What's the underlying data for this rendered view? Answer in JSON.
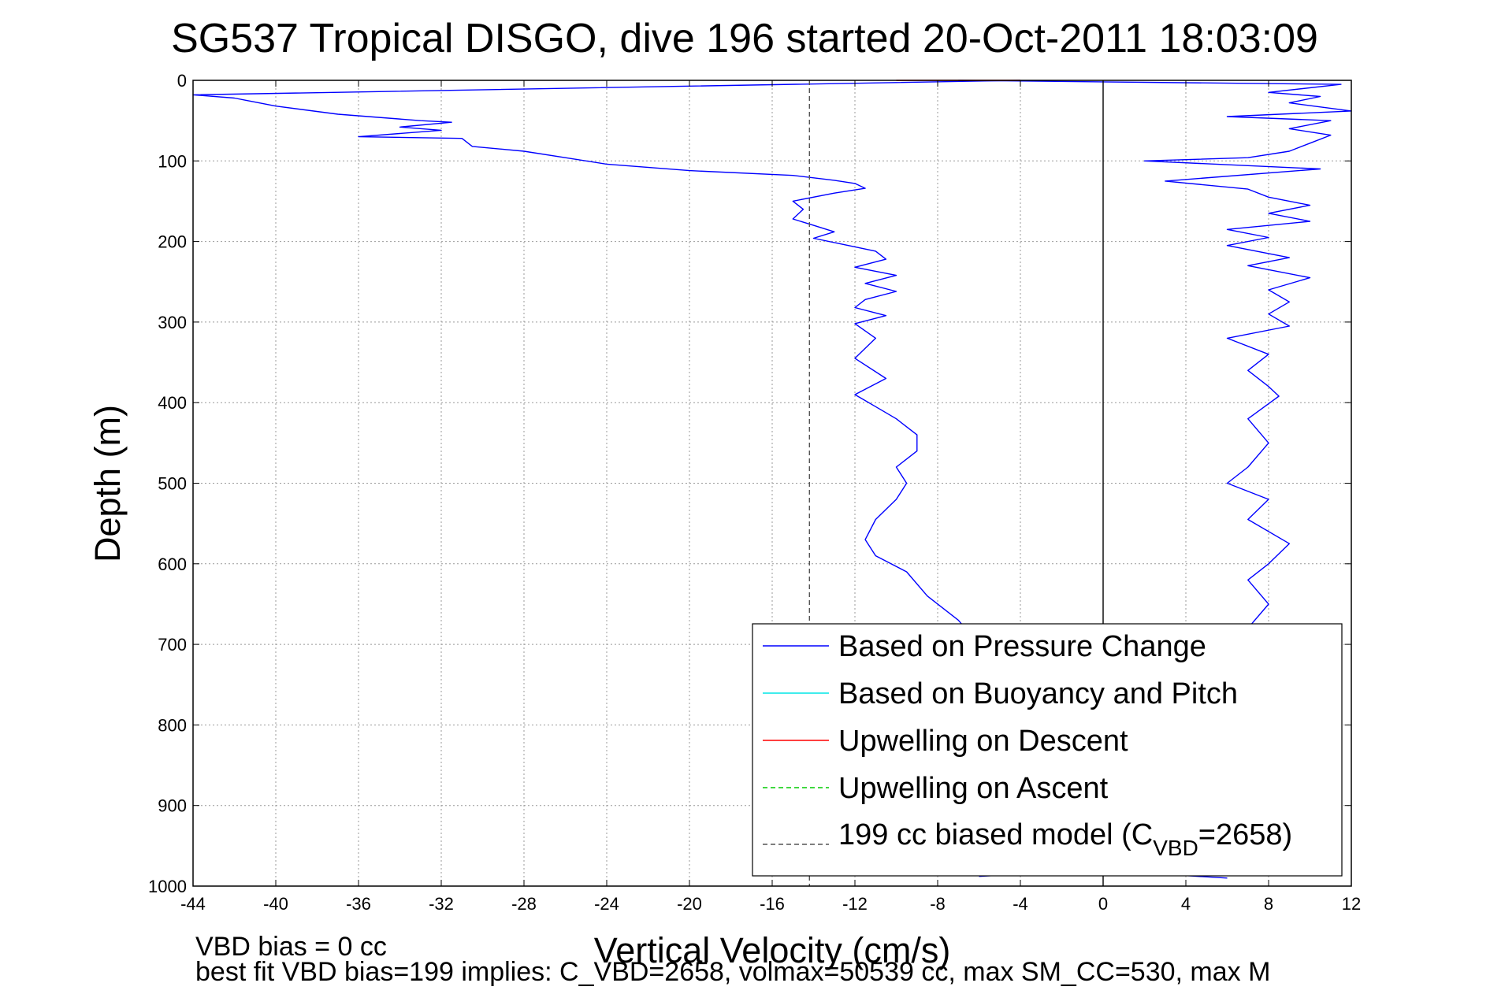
{
  "chart_data": {
    "type": "line",
    "title": "SG537 Tropical DISGO, dive 196 started 20-Oct-2011 18:03:09",
    "xlabel": "Vertical Velocity (cm/s)",
    "ylabel": "Depth (m)",
    "xlim": [
      -44,
      12
    ],
    "ylim": [
      0,
      1000
    ],
    "y_reversed": true,
    "grid": true,
    "legend_placement": "bottom-right",
    "x_ticks": [
      "-44",
      "-40",
      "-36",
      "-32",
      "-28",
      "-24",
      "-20",
      "-16",
      "-12",
      "-8",
      "-4",
      "0",
      "4",
      "8",
      "12"
    ],
    "y_ticks": [
      "0",
      "100",
      "200",
      "300",
      "400",
      "500",
      "600",
      "700",
      "800",
      "900",
      "1000"
    ],
    "series": [
      {
        "name": "Based on Pressure Change",
        "color": "#0000ff",
        "style": "solid",
        "points": [
          [
            -4,
            0
          ],
          [
            -44,
            18
          ],
          [
            -42,
            22
          ],
          [
            -40,
            32
          ],
          [
            -37,
            42
          ],
          [
            -33,
            50
          ],
          [
            -31.5,
            52
          ],
          [
            -34,
            58
          ],
          [
            -32,
            62
          ],
          [
            -36,
            70
          ],
          [
            -31,
            72
          ],
          [
            -30.5,
            82
          ],
          [
            -28,
            88
          ],
          [
            -26,
            96
          ],
          [
            -24,
            104
          ],
          [
            -20,
            112
          ],
          [
            -15,
            118
          ],
          [
            -13,
            124
          ],
          [
            -12,
            128
          ],
          [
            -11.5,
            134
          ],
          [
            -13,
            140
          ],
          [
            -15,
            150
          ],
          [
            -14.5,
            160
          ],
          [
            -15,
            172
          ],
          [
            -14,
            180
          ],
          [
            -13,
            188
          ],
          [
            -14,
            196
          ],
          [
            -12.5,
            204
          ],
          [
            -11,
            212
          ],
          [
            -10.5,
            222
          ],
          [
            -12,
            232
          ],
          [
            -10,
            242
          ],
          [
            -11.5,
            252
          ],
          [
            -10,
            262
          ],
          [
            -11.5,
            272
          ],
          [
            -12,
            282
          ],
          [
            -10.5,
            292
          ],
          [
            -12,
            302
          ],
          [
            -11,
            320
          ],
          [
            -12,
            345
          ],
          [
            -10.5,
            370
          ],
          [
            -12,
            390
          ],
          [
            -11,
            405
          ],
          [
            -10,
            420
          ],
          [
            -9,
            440
          ],
          [
            -9,
            460
          ],
          [
            -10,
            480
          ],
          [
            -9.5,
            500
          ],
          [
            -10,
            520
          ],
          [
            -11,
            545
          ],
          [
            -11.5,
            570
          ],
          [
            -11,
            590
          ],
          [
            -9.5,
            610
          ],
          [
            -8.5,
            640
          ],
          [
            -7,
            670
          ],
          [
            -6,
            700
          ],
          [
            -4.5,
            750
          ],
          [
            -3,
            800
          ],
          [
            -2,
            850
          ],
          [
            -2,
            900
          ],
          [
            -1,
            950
          ],
          [
            -4,
            985
          ],
          [
            -6,
            988
          ]
        ]
      },
      {
        "name": "Based on Pressure Change",
        "color": "#0000ff",
        "style": "solid",
        "points": [
          [
            -7,
            0
          ],
          [
            11.5,
            5
          ],
          [
            8,
            15
          ],
          [
            10.5,
            20
          ],
          [
            9,
            28
          ],
          [
            12,
            38
          ],
          [
            6,
            45
          ],
          [
            11,
            50
          ],
          [
            9,
            60
          ],
          [
            11,
            68
          ],
          [
            10,
            78
          ],
          [
            9,
            88
          ],
          [
            7,
            96
          ],
          [
            2,
            100
          ],
          [
            10.5,
            110
          ],
          [
            3,
            125
          ],
          [
            7,
            135
          ],
          [
            8,
            145
          ],
          [
            10,
            155
          ],
          [
            8,
            165
          ],
          [
            10,
            175
          ],
          [
            6,
            185
          ],
          [
            8,
            195
          ],
          [
            6,
            205
          ],
          [
            9,
            220
          ],
          [
            7,
            230
          ],
          [
            10,
            245
          ],
          [
            8,
            260
          ],
          [
            9,
            275
          ],
          [
            8,
            290
          ],
          [
            9,
            305
          ],
          [
            6,
            320
          ],
          [
            8,
            340
          ],
          [
            7,
            360
          ],
          [
            8,
            380
          ],
          [
            8.5,
            392
          ],
          [
            7,
            420
          ],
          [
            8,
            450
          ],
          [
            7,
            480
          ],
          [
            6,
            500
          ],
          [
            8,
            520
          ],
          [
            7,
            545
          ],
          [
            9,
            575
          ],
          [
            8,
            600
          ],
          [
            7,
            620
          ],
          [
            8,
            650
          ],
          [
            7,
            680
          ],
          [
            5,
            720
          ],
          [
            5,
            800
          ],
          [
            3,
            850
          ],
          [
            5,
            920
          ],
          [
            4,
            987
          ],
          [
            6,
            990
          ]
        ]
      },
      {
        "name": "Upwelling on Descent",
        "color": "#ff0000",
        "style": "solid",
        "points": [
          [
            -10,
            0
          ],
          [
            -4,
            0
          ]
        ]
      },
      {
        "name": "199 cc biased model (C_VBD=2658)",
        "color": "#555555",
        "style": "dashed",
        "points": [
          [
            -14.2,
            0
          ],
          [
            -14.2,
            1000
          ]
        ]
      },
      {
        "name": "zero line",
        "color": "#000000",
        "style": "solid",
        "points": [
          [
            0,
            0
          ],
          [
            0,
            1000
          ]
        ]
      }
    ],
    "legend": [
      {
        "label": "Based on Pressure Change",
        "color": "#0000ff",
        "style": "solid"
      },
      {
        "label": "Based on Buoyancy and Pitch",
        "color": "#00e5e5",
        "style": "solid"
      },
      {
        "label": "Upwelling on Descent",
        "color": "#ff0000",
        "style": "solid"
      },
      {
        "label": "Upwelling on Ascent",
        "color": "#00cc00",
        "style": "dashed"
      },
      {
        "label_main": "199 cc biased model (C",
        "label_sub": "VBD",
        "label_tail": "=2658)",
        "color": "#555555",
        "style": "dashed"
      }
    ],
    "annotations": [
      "VBD bias = 0 cc",
      "best fit VBD bias=199 implies: C_VBD=2658, volmax=50539 cc, max SM_CC=530, max M"
    ]
  }
}
